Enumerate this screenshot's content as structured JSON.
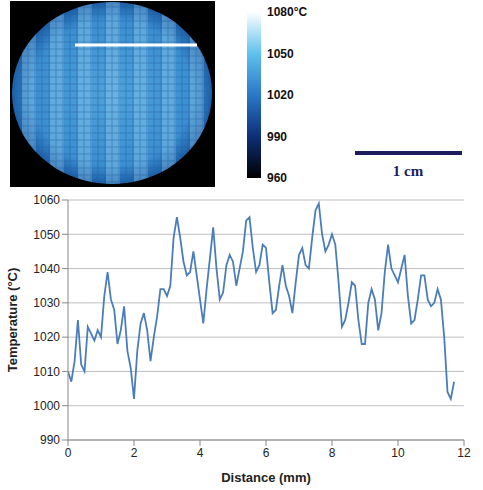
{
  "chart_data": {
    "type": "line",
    "xlabel": "Distance (mm)",
    "ylabel": "Temperature (°C)",
    "color": "#4a7ebb",
    "grid": true,
    "xlim": [
      0,
      12
    ],
    "xticks": [
      0,
      2,
      4,
      6,
      8,
      10,
      12
    ],
    "ylim": [
      990,
      1060
    ],
    "yticks": [
      990,
      1000,
      1010,
      1020,
      1030,
      1040,
      1050,
      1060
    ],
    "x": [
      0.0,
      0.1,
      0.2,
      0.3,
      0.4,
      0.5,
      0.6,
      0.7,
      0.8,
      0.9,
      1.0,
      1.1,
      1.2,
      1.3,
      1.4,
      1.5,
      1.6,
      1.7,
      1.8,
      1.9,
      2.0,
      2.1,
      2.2,
      2.3,
      2.4,
      2.5,
      2.6,
      2.7,
      2.8,
      2.9,
      3.0,
      3.1,
      3.2,
      3.3,
      3.4,
      3.5,
      3.6,
      3.7,
      3.8,
      3.9,
      4.0,
      4.1,
      4.2,
      4.3,
      4.4,
      4.5,
      4.6,
      4.7,
      4.8,
      4.9,
      5.0,
      5.1,
      5.2,
      5.3,
      5.4,
      5.5,
      5.6,
      5.7,
      5.8,
      5.9,
      6.0,
      6.1,
      6.2,
      6.3,
      6.4,
      6.5,
      6.6,
      6.7,
      6.8,
      6.9,
      7.0,
      7.1,
      7.2,
      7.3,
      7.4,
      7.5,
      7.6,
      7.7,
      7.8,
      7.9,
      8.0,
      8.1,
      8.2,
      8.3,
      8.4,
      8.5,
      8.6,
      8.7,
      8.8,
      8.9,
      9.0,
      9.1,
      9.2,
      9.3,
      9.4,
      9.5,
      9.6,
      9.7,
      9.8,
      9.9,
      10.0,
      10.1,
      10.2,
      10.3,
      10.4,
      10.5,
      10.6,
      10.7,
      10.8,
      10.9,
      11.0,
      11.1,
      11.2,
      11.3,
      11.4,
      11.5,
      11.6,
      11.7
    ],
    "values": [
      1010,
      1007,
      1013,
      1025,
      1012,
      1010,
      1023,
      1021,
      1019,
      1022,
      1020,
      1032,
      1039,
      1031,
      1028,
      1018,
      1022,
      1029,
      1016,
      1011,
      1002,
      1016,
      1024,
      1027,
      1022,
      1013,
      1020,
      1026,
      1034,
      1034,
      1032,
      1035,
      1049,
      1055,
      1049,
      1042,
      1038,
      1039,
      1045,
      1038,
      1031,
      1024,
      1034,
      1043,
      1052,
      1040,
      1031,
      1033,
      1041,
      1044,
      1042,
      1035,
      1040,
      1045,
      1054,
      1055,
      1046,
      1039,
      1041,
      1047,
      1046,
      1036,
      1027,
      1028,
      1035,
      1041,
      1035,
      1032,
      1027,
      1036,
      1044,
      1046,
      1041,
      1040,
      1049,
      1057,
      1059,
      1050,
      1045,
      1047,
      1050,
      1047,
      1036,
      1023,
      1025,
      1030,
      1036,
      1035,
      1025,
      1018,
      1018,
      1030,
      1034,
      1031,
      1022,
      1027,
      1039,
      1047,
      1040,
      1038,
      1036,
      1040,
      1044,
      1032,
      1024,
      1025,
      1031,
      1038,
      1038,
      1031,
      1029,
      1030,
      1034,
      1031,
      1020,
      1004,
      1002,
      1007
    ]
  },
  "image": {
    "colorbar": {
      "range": [
        960,
        1080
      ],
      "ticks": [
        960,
        990,
        1020,
        1050,
        {
          "value": 1080,
          "label": "1080°C"
        }
      ]
    },
    "scale_bar": "1 cm"
  }
}
